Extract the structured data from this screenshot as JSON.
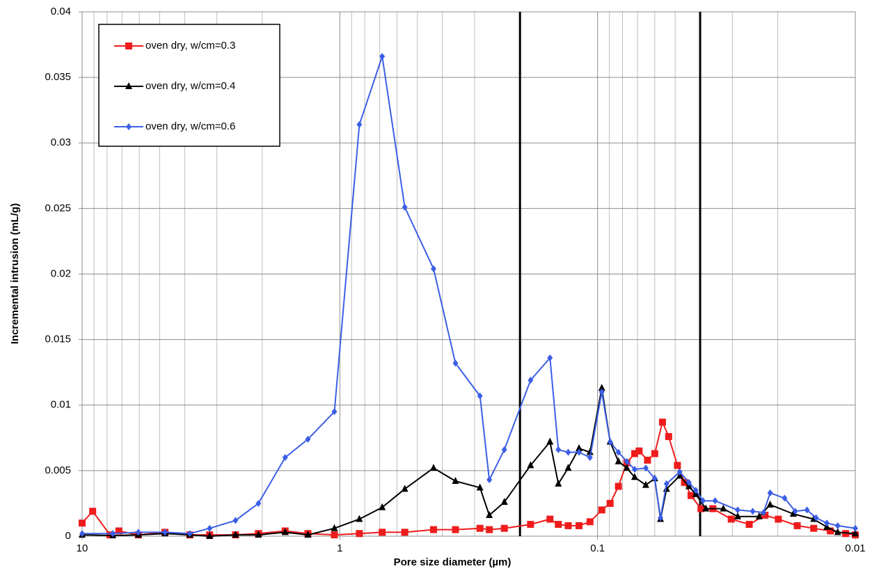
{
  "chart_data": {
    "type": "line",
    "x_label": "Pore size diameter (µm)",
    "y_label": "Incremental intrusion (mL/g)",
    "x_log": true,
    "grid": true,
    "minor_grid": true,
    "legend": "upper left",
    "xlim": [
      10,
      0.01
    ],
    "xticks": [
      10,
      1,
      0.1,
      0.01
    ],
    "ylim": [
      0,
      0.04
    ],
    "yticks": [
      0,
      0.005,
      0.01,
      0.015,
      0.02,
      0.025,
      0.03,
      0.035,
      0.04
    ],
    "vlines": [
      0.2,
      0.04
    ],
    "series": [
      {
        "name": "oven dry, w/cm=0.3",
        "color": "#ee1c1c",
        "marker": "square",
        "x": [
          10,
          9.1,
          7.8,
          7.2,
          6.05,
          4.77,
          3.82,
          3.2,
          2.54,
          2.07,
          1.63,
          1.33,
          1.05,
          0.84,
          0.685,
          0.56,
          0.433,
          0.356,
          0.286,
          0.263,
          0.23,
          0.182,
          0.153,
          0.142,
          0.13,
          0.118,
          0.107,
          0.0963,
          0.0894,
          0.083,
          0.077,
          0.0718,
          0.069,
          0.064,
          0.06,
          0.056,
          0.053,
          0.049,
          0.046,
          0.0434,
          0.0397,
          0.0357,
          0.0303,
          0.0258,
          0.0224,
          0.0199,
          0.0168,
          0.0145,
          0.0125,
          0.0109,
          0.01
        ],
        "values": [
          0.001,
          0.0019,
          0.0001,
          0.0004,
          0.0001,
          0.0003,
          0.0001,
          0.0001,
          0.0001,
          0.0002,
          0.0004,
          0.0002,
          0.0001,
          0.0002,
          0.0003,
          0.0003,
          0.0005,
          0.0005,
          0.0006,
          0.0005,
          0.0006,
          0.0009,
          0.0013,
          0.0009,
          0.0008,
          0.0008,
          0.0011,
          0.002,
          0.0025,
          0.0038,
          0.0056,
          0.0063,
          0.0065,
          0.0058,
          0.0063,
          0.0087,
          0.0076,
          0.0054,
          0.0041,
          0.0031,
          0.0021,
          0.0021,
          0.0013,
          0.0009,
          0.0016,
          0.0013,
          0.0008,
          0.0006,
          0.0004,
          0.0002,
          0.0001
        ]
      },
      {
        "name": "oven dry, w/cm=0.4",
        "color": "#000000",
        "marker": "triangle",
        "x": [
          10,
          7.6,
          6.05,
          4.77,
          3.82,
          3.2,
          2.54,
          2.07,
          1.63,
          1.33,
          1.05,
          0.84,
          0.685,
          0.56,
          0.433,
          0.356,
          0.286,
          0.263,
          0.23,
          0.182,
          0.153,
          0.142,
          0.13,
          0.118,
          0.107,
          0.0963,
          0.0894,
          0.083,
          0.077,
          0.0718,
          0.065,
          0.06,
          0.057,
          0.054,
          0.048,
          0.0442,
          0.0416,
          0.038,
          0.0325,
          0.0286,
          0.0236,
          0.0214,
          0.0174,
          0.0145,
          0.0129,
          0.0117,
          0.01
        ],
        "values": [
          0.0001,
          5e-05,
          0.0001,
          0.0002,
          0.0001,
          0,
          0.0001,
          0.0001,
          0.0003,
          0.0001,
          0.0006,
          0.0013,
          0.0022,
          0.0036,
          0.0052,
          0.0042,
          0.0037,
          0.0016,
          0.0026,
          0.0054,
          0.0072,
          0.004,
          0.0052,
          0.0067,
          0.0064,
          0.0113,
          0.0072,
          0.0057,
          0.0052,
          0.0045,
          0.0039,
          0.0044,
          0.0013,
          0.0036,
          0.0046,
          0.0038,
          0.0032,
          0.0021,
          0.0021,
          0.0015,
          0.0015,
          0.0024,
          0.0017,
          0.0013,
          0.0007,
          0.0003,
          0.0002
        ]
      },
      {
        "name": "oven dry, w/cm=0.6",
        "color": "#3b5ee6",
        "marker": "diamond",
        "x": [
          10,
          7.6,
          6.05,
          4.77,
          3.82,
          3.2,
          2.54,
          2.07,
          1.63,
          1.33,
          1.05,
          0.84,
          0.685,
          0.56,
          0.433,
          0.356,
          0.286,
          0.263,
          0.23,
          0.182,
          0.153,
          0.142,
          0.13,
          0.118,
          0.107,
          0.0963,
          0.0894,
          0.083,
          0.077,
          0.0718,
          0.065,
          0.06,
          0.057,
          0.054,
          0.048,
          0.0442,
          0.0416,
          0.039,
          0.035,
          0.0286,
          0.025,
          0.0227,
          0.0214,
          0.0188,
          0.0171,
          0.0154,
          0.0142,
          0.0129,
          0.0117,
          0.01
        ],
        "values": [
          0.0002,
          0.0002,
          0.0003,
          0.0003,
          0.0002,
          0.0006,
          0.0012,
          0.0025,
          0.006,
          0.0074,
          0.0095,
          0.0314,
          0.0366,
          0.0251,
          0.0204,
          0.0132,
          0.0107,
          0.0043,
          0.0066,
          0.0119,
          0.0136,
          0.0066,
          0.0064,
          0.0064,
          0.006,
          0.011,
          0.0072,
          0.0064,
          0.0057,
          0.0051,
          0.0052,
          0.0044,
          0.0014,
          0.004,
          0.0049,
          0.0041,
          0.0035,
          0.0027,
          0.0027,
          0.002,
          0.0019,
          0.0018,
          0.0033,
          0.0029,
          0.0019,
          0.002,
          0.0014,
          0.001,
          0.0008,
          0.0006
        ]
      }
    ]
  }
}
